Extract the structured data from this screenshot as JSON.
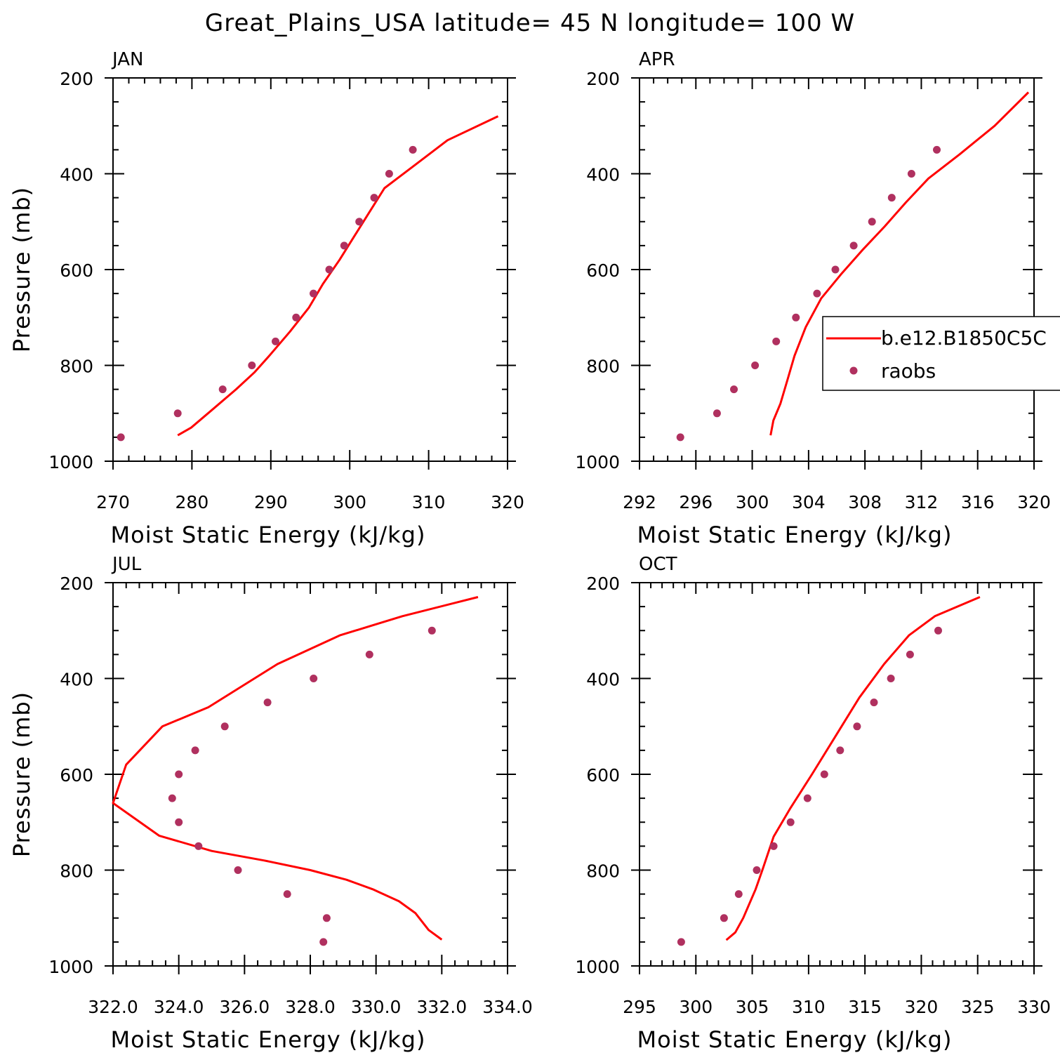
{
  "figure": {
    "title": "Great_Plains_USA  latitude= 45 N longitude= 100 W",
    "colors": {
      "model": "#ff0000",
      "obs": "#b0305f"
    }
  },
  "legend": {
    "model_label": "b.e12.B1850C5C",
    "obs_label": "raobs"
  },
  "chart_data": [
    {
      "type": "line",
      "title": "JAN",
      "xlabel": "Moist Static Energy (kJ/kg)",
      "ylabel": "Pressure (mb)",
      "xlim": [
        270,
        320
      ],
      "ylim": [
        1000,
        200
      ],
      "y_inverted": true,
      "xticks": [
        270,
        280,
        290,
        300,
        310,
        320
      ],
      "xtick_labels": [
        "270",
        "280",
        "290",
        "300",
        "310",
        "320"
      ],
      "xminor_step": 2,
      "yticks": [
        200,
        400,
        600,
        800,
        1000
      ],
      "ytick_labels": [
        "200",
        "400",
        "600",
        "800",
        "1000"
      ],
      "series": [
        {
          "name": "b.e12.B1850C5C",
          "kind": "line",
          "x": [
            278.2,
            279.9,
            282.4,
            285.6,
            287.9,
            289.8,
            292.4,
            294.8,
            296.6,
            298.7,
            300.6,
            302.5,
            304.4,
            308.4,
            312.4,
            318.8
          ],
          "y": [
            946,
            930,
            895,
            850,
            815,
            780,
            730,
            680,
            630,
            580,
            530,
            480,
            430,
            380,
            330,
            280
          ]
        },
        {
          "name": "raobs",
          "kind": "scatter",
          "x": [
            271.0,
            278.2,
            283.9,
            287.6,
            290.6,
            293.2,
            295.4,
            297.4,
            299.3,
            301.2,
            303.1,
            305.0,
            308.0
          ],
          "y": [
            950,
            900,
            850,
            800,
            750,
            700,
            650,
            600,
            550,
            500,
            450,
            400,
            350
          ]
        }
      ]
    },
    {
      "type": "line",
      "title": "APR",
      "xlabel": "Moist Static Energy (kJ/kg)",
      "ylabel": "",
      "xlim": [
        292,
        320
      ],
      "ylim": [
        1000,
        200
      ],
      "y_inverted": true,
      "xticks": [
        292,
        296,
        300,
        304,
        308,
        312,
        316,
        320
      ],
      "xtick_labels": [
        "292",
        "296",
        "300",
        "304",
        "308",
        "312",
        "316",
        "320"
      ],
      "xminor_step": 1,
      "yticks": [
        200,
        400,
        600,
        800,
        1000
      ],
      "ytick_labels": [
        "200",
        "400",
        "600",
        "800",
        "1000"
      ],
      "series": [
        {
          "name": "b.e12.B1850C5C",
          "kind": "line",
          "x": [
            301.3,
            301.5,
            302.0,
            302.5,
            303.0,
            303.8,
            304.9,
            306.3,
            307.8,
            309.4,
            310.9,
            312.5,
            314.7,
            317.2,
            319.6
          ],
          "y": [
            946,
            915,
            880,
            830,
            780,
            720,
            660,
            610,
            560,
            510,
            460,
            410,
            360,
            300,
            230
          ]
        },
        {
          "name": "raobs",
          "kind": "scatter",
          "x": [
            294.9,
            297.5,
            298.7,
            300.2,
            301.7,
            303.1,
            304.6,
            305.9,
            307.2,
            308.5,
            309.9,
            311.3,
            313.1
          ],
          "y": [
            950,
            900,
            850,
            800,
            750,
            700,
            650,
            600,
            550,
            500,
            450,
            400,
            350
          ]
        }
      ]
    },
    {
      "type": "line",
      "title": "JUL",
      "xlabel": "Moist Static Energy (kJ/kg)",
      "ylabel": "Pressure (mb)",
      "xlim": [
        322.0,
        334.0
      ],
      "ylim": [
        1000,
        200
      ],
      "y_inverted": true,
      "xticks": [
        322.0,
        324.0,
        326.0,
        328.0,
        330.0,
        332.0,
        334.0
      ],
      "xtick_labels": [
        "322.0",
        "324.0",
        "326.0",
        "328.0",
        "330.0",
        "332.0",
        "334.0"
      ],
      "xminor_step": 0.4,
      "yticks": [
        200,
        400,
        600,
        800,
        1000
      ],
      "ytick_labels": [
        "200",
        "400",
        "600",
        "800",
        "1000"
      ],
      "series": [
        {
          "name": "b.e12.B1850C5C",
          "kind": "line",
          "x": [
            332.0,
            331.6,
            331.2,
            330.7,
            329.9,
            329.1,
            328.0,
            326.6,
            325.0,
            323.4,
            322.0,
            322.4,
            323.5,
            324.9,
            325.6,
            327.0,
            328.9,
            330.8,
            333.1
          ],
          "y": [
            945,
            925,
            890,
            865,
            840,
            820,
            800,
            780,
            760,
            728,
            660,
            580,
            500,
            460,
            430,
            370,
            310,
            270,
            230
          ]
        },
        {
          "name": "raobs",
          "kind": "scatter",
          "x": [
            328.4,
            328.5,
            327.3,
            325.8,
            324.6,
            324.0,
            323.8,
            324.0,
            324.5,
            325.4,
            326.7,
            328.1,
            329.8,
            331.7
          ],
          "y": [
            950,
            900,
            850,
            800,
            750,
            700,
            650,
            600,
            550,
            500,
            450,
            400,
            350,
            300
          ]
        }
      ]
    },
    {
      "type": "line",
      "title": "OCT",
      "xlabel": "Moist Static Energy (kJ/kg)",
      "ylabel": "",
      "xlim": [
        295,
        330
      ],
      "ylim": [
        1000,
        200
      ],
      "y_inverted": true,
      "xticks": [
        295,
        300,
        305,
        310,
        315,
        320,
        325,
        330
      ],
      "xtick_labels": [
        "295",
        "300",
        "305",
        "310",
        "315",
        "320",
        "325",
        "330"
      ],
      "xminor_step": 1,
      "yticks": [
        200,
        400,
        600,
        800,
        1000
      ],
      "ytick_labels": [
        "200",
        "400",
        "600",
        "800",
        "1000"
      ],
      "series": [
        {
          "name": "b.e12.B1850C5C",
          "kind": "line",
          "x": [
            302.7,
            303.5,
            304.2,
            305.3,
            305.9,
            306.9,
            308.4,
            310.3,
            312.4,
            314.5,
            316.7,
            318.9,
            321.2,
            325.2
          ],
          "y": [
            946,
            930,
            900,
            840,
            800,
            730,
            670,
            600,
            520,
            440,
            370,
            310,
            270,
            230
          ]
        },
        {
          "name": "raobs",
          "kind": "scatter",
          "x": [
            298.7,
            302.5,
            303.8,
            305.4,
            306.9,
            308.4,
            309.9,
            311.4,
            312.8,
            314.3,
            315.8,
            317.3,
            319.0,
            321.5
          ],
          "y": [
            950,
            900,
            850,
            800,
            750,
            700,
            650,
            600,
            550,
            500,
            450,
            400,
            350,
            300
          ]
        }
      ]
    }
  ]
}
